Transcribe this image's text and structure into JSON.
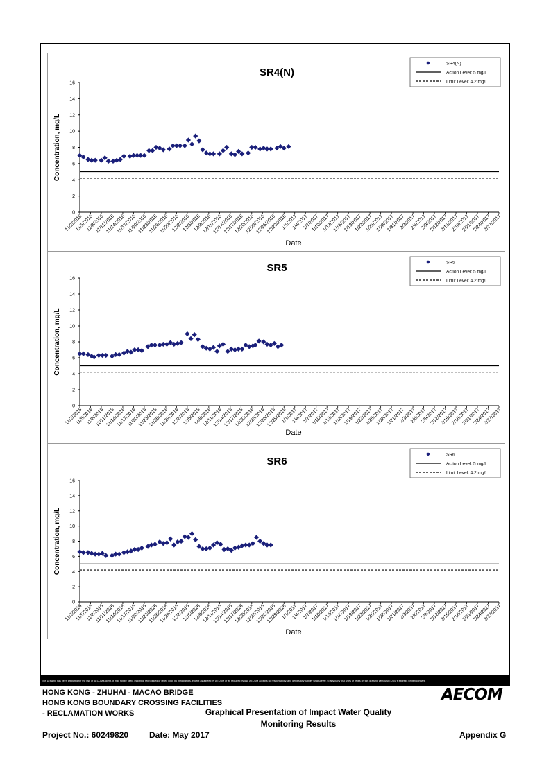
{
  "chart_data": [
    {
      "type": "scatter",
      "title": "SR4(N)",
      "xlabel": "Date",
      "ylabel": "Concentration, mg/L",
      "ylim": [
        0,
        16
      ],
      "yticks": [
        "0",
        "2",
        "4",
        "6",
        "8",
        "10",
        "12",
        "14",
        "16"
      ],
      "legend_position": "top-right",
      "categories": [
        "11/2/2016",
        "11/5/2016",
        "11/8/2016",
        "11/11/2016",
        "11/14/2016",
        "11/17/2016",
        "11/20/2016",
        "11/23/2016",
        "11/26/2016",
        "11/29/2016",
        "12/2/2016",
        "12/5/2016",
        "12/8/2016",
        "12/11/2016",
        "12/14/2016",
        "12/17/2016",
        "12/20/2016",
        "12/23/2016",
        "12/26/2016",
        "12/29/2016",
        "1/1/2017",
        "1/4/2017",
        "1/7/2017",
        "1/10/2017",
        "1/13/2017",
        "1/16/2017",
        "1/19/2017",
        "1/22/2017",
        "1/25/2017",
        "1/28/2017",
        "1/31/2017",
        "2/3/2017",
        "2/6/2017",
        "2/9/2017",
        "2/12/2017",
        "2/15/2017",
        "2/18/2017",
        "2/21/2017",
        "2/24/2017",
        "2/27/2017"
      ],
      "series": [
        {
          "name": "SR4(N)",
          "marker": "diamond",
          "color": "#1a1f7a",
          "x": [
            0,
            1,
            2.3,
            3.3,
            4.3,
            6,
            7,
            8,
            9.3,
            10.3,
            11.3,
            12.3,
            14,
            15,
            16,
            17,
            18,
            19.3,
            20.3,
            21.3,
            22.3,
            23.3,
            25,
            26,
            27,
            28,
            29.3,
            30.3,
            31.3,
            32.3,
            33.3,
            34.3,
            35.3,
            36.3,
            37.3,
            39,
            40,
            41,
            42.3,
            43.3,
            44.3,
            45.3,
            47,
            48,
            49,
            50.3,
            51.3,
            52.3,
            53.3,
            55,
            56,
            57,
            58.3
          ],
          "y": [
            7.0,
            6.8,
            6.5,
            6.4,
            6.4,
            6.4,
            6.7,
            6.3,
            6.3,
            6.4,
            6.5,
            6.9,
            6.9,
            7.0,
            7.0,
            7.0,
            7.0,
            7.6,
            7.6,
            8.0,
            7.9,
            7.7,
            7.8,
            8.2,
            8.2,
            8.2,
            8.2,
            8.9,
            8.4,
            9.4,
            8.8,
            7.7,
            7.3,
            7.2,
            7.2,
            7.2,
            7.6,
            8.0,
            7.2,
            7.1,
            7.5,
            7.2,
            7.3,
            8.0,
            8.0,
            7.8,
            7.9,
            7.8,
            7.8,
            7.9,
            8.1,
            7.9,
            8.1
          ]
        },
        {
          "name": "Action Level: 5 mg/L",
          "line": "solid",
          "y": 5
        },
        {
          "name": "Limit Level: 4.2 mg/L",
          "line": "dashed",
          "y": 4.2
        }
      ]
    },
    {
      "type": "scatter",
      "title": "SR5",
      "xlabel": "Date",
      "ylabel": "Concentration, mg/L",
      "ylim": [
        0,
        16
      ],
      "yticks": [
        "0",
        "2",
        "4",
        "6",
        "8",
        "10",
        "12",
        "14",
        "16"
      ],
      "legend_position": "top-right",
      "categories": [
        "11/2/2016",
        "11/5/2016",
        "11/8/2016",
        "11/11/2016",
        "11/14/2016",
        "11/17/2016",
        "11/20/2016",
        "11/23/2016",
        "11/26/2016",
        "11/29/2016",
        "12/2/2016",
        "12/5/2016",
        "12/8/2016",
        "12/11/2016",
        "12/14/2016",
        "12/17/2016",
        "12/20/2016",
        "12/23/2016",
        "12/26/2016",
        "12/29/2016",
        "1/1/2017",
        "1/4/2017",
        "1/7/2017",
        "1/10/2017",
        "1/13/2017",
        "1/16/2017",
        "1/19/2017",
        "1/22/2017",
        "1/25/2017",
        "1/28/2017",
        "1/31/2017",
        "2/3/2017",
        "2/6/2017",
        "2/9/2017",
        "2/12/2017",
        "2/15/2017",
        "2/18/2017",
        "2/21/2017",
        "2/24/2017",
        "2/27/2017"
      ],
      "series": [
        {
          "name": "SR5",
          "marker": "diamond",
          "color": "#1a1f7a",
          "x": [
            0,
            1,
            2.3,
            3.3,
            4,
            5.3,
            6.3,
            7.3,
            9,
            10,
            11,
            12.3,
            13.3,
            14.3,
            15.3,
            16.3,
            17.3,
            19,
            20,
            21,
            22.3,
            23.3,
            24.3,
            25.3,
            26.3,
            27.3,
            28.3,
            30,
            31,
            32,
            33,
            34.3,
            35.3,
            36.3,
            37.3,
            38.3,
            39,
            40,
            41.3,
            42.3,
            43.3,
            44.3,
            45.3,
            46.3,
            47.3,
            48.3,
            49,
            50,
            51.3,
            52.3,
            53.3,
            54.3,
            55.3,
            56.3
          ],
          "y": [
            6.5,
            6.5,
            6.4,
            6.2,
            6.1,
            6.3,
            6.3,
            6.3,
            6.2,
            6.4,
            6.4,
            6.6,
            6.8,
            6.7,
            7.0,
            7.0,
            6.9,
            7.4,
            7.6,
            7.6,
            7.6,
            7.7,
            7.7,
            7.9,
            7.7,
            7.8,
            7.9,
            9.0,
            8.4,
            8.9,
            8.3,
            7.4,
            7.2,
            7.1,
            7.3,
            6.8,
            7.5,
            7.7,
            6.8,
            7.1,
            7.0,
            7.1,
            7.1,
            7.6,
            7.4,
            7.5,
            7.6,
            8.1,
            8.0,
            7.7,
            7.6,
            7.8,
            7.4,
            7.6
          ]
        },
        {
          "name": "Action Level: 5 mg/L",
          "line": "solid",
          "y": 5
        },
        {
          "name": "Limit Level: 4.2 mg/L",
          "line": "dashed",
          "y": 4.2
        }
      ]
    },
    {
      "type": "scatter",
      "title": "SR6",
      "xlabel": "Date",
      "ylabel": "Concentration, mg/L",
      "ylim": [
        0,
        16
      ],
      "yticks": [
        "0",
        "2",
        "4",
        "6",
        "8",
        "10",
        "12",
        "14",
        "16"
      ],
      "legend_position": "top-right",
      "categories": [
        "11/2/2016",
        "11/5/2016",
        "11/8/2016",
        "11/11/2016",
        "11/14/2016",
        "11/17/2016",
        "11/20/2016",
        "11/23/2016",
        "11/26/2016",
        "11/29/2016",
        "12/2/2016",
        "12/5/2016",
        "12/8/2016",
        "12/11/2016",
        "12/14/2016",
        "12/17/2016",
        "12/20/2016",
        "12/23/2016",
        "12/26/2016",
        "12/29/2016",
        "1/1/2017",
        "1/4/2017",
        "1/7/2017",
        "1/10/2017",
        "1/13/2017",
        "1/16/2017",
        "1/19/2017",
        "1/22/2017",
        "1/25/2017",
        "1/28/2017",
        "1/31/2017",
        "2/3/2017",
        "2/6/2017",
        "2/9/2017",
        "2/12/2017",
        "2/15/2017",
        "2/18/2017",
        "2/21/2017",
        "2/24/2017",
        "2/27/2017"
      ],
      "series": [
        {
          "name": "SR6",
          "marker": "diamond",
          "color": "#1a1f7a",
          "x": [
            0,
            1,
            2.3,
            3.3,
            4.3,
            5.3,
            6.3,
            7.3,
            9,
            10,
            11,
            12.3,
            13.3,
            14.3,
            15.3,
            16.3,
            17.3,
            19,
            20,
            21,
            22.3,
            23.3,
            24.3,
            25.3,
            26.3,
            27.3,
            28.3,
            29.3,
            30.3,
            31.3,
            32.3,
            33.3,
            34.3,
            35.3,
            36.3,
            37.3,
            38.3,
            39.3,
            40.3,
            41.3,
            42.3,
            43.3,
            44.3,
            45.3,
            46.3,
            47.3,
            48.3,
            49.3,
            50.3,
            51.3,
            52.3,
            53.3
          ],
          "y": [
            6.6,
            6.5,
            6.5,
            6.4,
            6.3,
            6.3,
            6.4,
            6.1,
            6.1,
            6.3,
            6.3,
            6.5,
            6.6,
            6.7,
            6.9,
            6.9,
            7.1,
            7.3,
            7.5,
            7.6,
            7.9,
            7.7,
            7.8,
            8.3,
            7.5,
            7.9,
            8.0,
            8.6,
            8.5,
            9.0,
            8.2,
            7.3,
            7.0,
            7.0,
            7.1,
            7.5,
            7.8,
            7.6,
            6.9,
            7.0,
            6.8,
            7.1,
            7.2,
            7.4,
            7.5,
            7.5,
            7.7,
            8.5,
            8.0,
            7.7,
            7.5,
            7.5
          ]
        },
        {
          "name": "Action Level: 5 mg/L",
          "line": "solid",
          "y": 5
        },
        {
          "name": "Limit Level: 4.2 mg/L",
          "line": "dashed",
          "y": 4.2
        }
      ]
    }
  ],
  "footer": {
    "disclaimer": "This Drawing has been prepared for the use of AECOM's client. It may not be used, modified, reproduced or relied upon by third parties, except as agreed by AECOM or as required by law. AECOM accepts no responsibility, and denies any liability whatsoever, to any party that uses or relies on this drawing without AECOM's express written consent.",
    "project_line1": "HONG KONG - ZHUHAI - MACAO BRIDGE",
    "project_line2": "HONG KONG BOUNDARY CROSSING FACILITIES",
    "project_line3": "- RECLAMATION WORKS",
    "title_line1": "Graphical Presentation of Impact Water Quality",
    "title_line2": "Monitoring Results",
    "project_no": "Project No.: 60249820",
    "date": "Date: May 2017",
    "appendix": "Appendix G",
    "logo": "AECOM"
  }
}
